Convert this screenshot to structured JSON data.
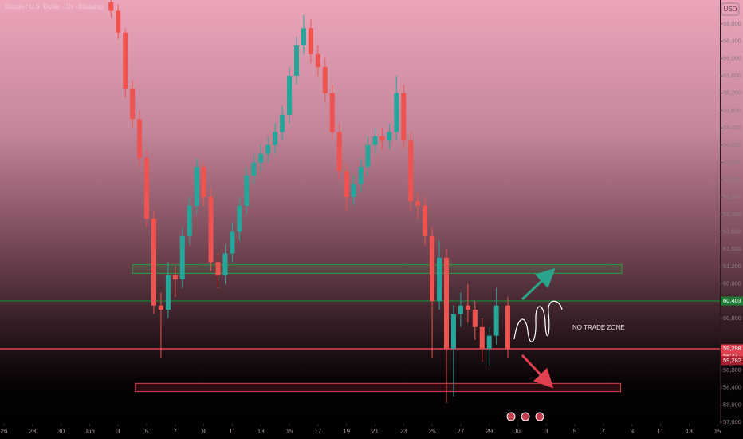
{
  "chart_data": {
    "type": "candlestick",
    "title": "Bitcoin / U.S. Dollar · 1h · Bitstamp",
    "currency": "USD",
    "up_color": "#26a69a",
    "down_color": "#ef5350",
    "x": [
      7.5,
      8,
      8.5,
      9,
      9.5,
      10,
      10.5,
      11,
      11.5,
      12,
      12.5,
      13,
      13.5,
      14,
      14.5,
      15,
      15.5,
      16,
      16.5,
      17,
      17.5,
      18,
      18.5,
      19,
      19.5,
      20,
      20.5,
      21,
      21.5,
      22,
      22.5,
      23,
      23.5,
      24,
      24.5,
      25,
      25.5,
      26,
      26.5,
      27,
      27.5,
      28,
      28.5,
      29,
      29.5,
      30,
      30.5,
      31,
      31.5,
      32,
      32.5,
      33,
      33.5,
      34,
      34.5,
      35.3
    ],
    "open": [
      67300,
      67100,
      66600,
      65300,
      64600,
      63700,
      62300,
      60300,
      60200,
      61000,
      60900,
      61900,
      62600,
      63500,
      62800,
      61300,
      61000,
      61500,
      62000,
      62600,
      63300,
      63600,
      63800,
      64000,
      64300,
      64700,
      65600,
      66300,
      66700,
      66100,
      65800,
      65200,
      64300,
      63400,
      62800,
      63100,
      63500,
      64000,
      64200,
      64100,
      64300,
      65200,
      64100,
      62700,
      62600,
      61900,
      60400,
      61400,
      59300,
      60100,
      60300,
      60200,
      59800,
      59300,
      59600,
      60300
    ],
    "high": [
      67350,
      67250,
      66700,
      65500,
      64800,
      63900,
      62500,
      60600,
      61300,
      61200,
      62100,
      62800,
      63700,
      63600,
      63000,
      61500,
      61700,
      62200,
      62800,
      63500,
      63800,
      64000,
      64200,
      64500,
      64900,
      65800,
      66500,
      67000,
      66900,
      66300,
      66000,
      65400,
      64500,
      63600,
      63300,
      63700,
      64200,
      64400,
      64400,
      64500,
      65600,
      65400,
      64300,
      62900,
      62800,
      62100,
      61800,
      61600,
      60300,
      60600,
      60800,
      60400,
      60000,
      59800,
      60700,
      60500
    ],
    "low": [
      66950,
      66450,
      65100,
      64400,
      63500,
      62100,
      60100,
      59100,
      60000,
      60500,
      60700,
      61700,
      62400,
      62600,
      61100,
      60700,
      60800,
      61300,
      61800,
      62400,
      63100,
      63400,
      63600,
      63800,
      64100,
      64500,
      65400,
      66100,
      65900,
      65600,
      65000,
      64100,
      63200,
      62500,
      62600,
      62900,
      63300,
      63800,
      63900,
      63900,
      64100,
      63900,
      62500,
      62300,
      61700,
      59100,
      60200,
      58050,
      58200,
      59800,
      59900,
      59500,
      59000,
      58900,
      59400,
      59100
    ],
    "close": [
      67100,
      66600,
      65300,
      64600,
      63700,
      62300,
      60300,
      60200,
      61000,
      60900,
      61900,
      62600,
      63500,
      62800,
      61300,
      61000,
      61500,
      62000,
      62600,
      63300,
      63600,
      63800,
      64000,
      64300,
      64700,
      65600,
      66300,
      66700,
      66100,
      65800,
      65200,
      64300,
      63400,
      62800,
      63100,
      63500,
      64000,
      64200,
      64100,
      64300,
      65200,
      64100,
      62700,
      62600,
      61900,
      60400,
      61400,
      59300,
      60100,
      60300,
      60200,
      59800,
      59300,
      59600,
      60300,
      59298
    ],
    "xlim": [
      -0.28,
      51.78
    ],
    "xticks": [
      {
        "value": 0,
        "label": "26"
      },
      {
        "value": 2,
        "label": "28"
      },
      {
        "value": 4,
        "label": "30"
      },
      {
        "value": 6,
        "label": "Jun"
      },
      {
        "value": 8,
        "label": "3"
      },
      {
        "value": 10,
        "label": "5"
      },
      {
        "value": 12,
        "label": "7"
      },
      {
        "value": 14,
        "label": "9"
      },
      {
        "value": 16,
        "label": "11"
      },
      {
        "value": 18,
        "label": "13"
      },
      {
        "value": 20,
        "label": "15"
      },
      {
        "value": 22,
        "label": "17"
      },
      {
        "value": 24,
        "label": "19"
      },
      {
        "value": 26,
        "label": "21"
      },
      {
        "value": 28,
        "label": "23"
      },
      {
        "value": 30,
        "label": "25"
      },
      {
        "value": 32,
        "label": "27"
      },
      {
        "value": 34,
        "label": "29"
      },
      {
        "value": 36,
        "label": "Jul"
      },
      {
        "value": 38,
        "label": "3"
      },
      {
        "value": 40,
        "label": "5"
      },
      {
        "value": 42,
        "label": "7"
      },
      {
        "value": 44,
        "label": "9"
      },
      {
        "value": 46,
        "label": "11"
      },
      {
        "value": 48,
        "label": "13"
      },
      {
        "value": 50,
        "label": "15"
      }
    ],
    "ylim": [
      57400,
      67350
    ],
    "yticks": [
      {
        "value": 66800,
        "label": "66,800"
      },
      {
        "value": 66400,
        "label": "66,400"
      },
      {
        "value": 66000,
        "label": "66,000"
      },
      {
        "value": 65600,
        "label": "65,600"
      },
      {
        "value": 65200,
        "label": "65,200"
      },
      {
        "value": 64800,
        "label": "64,800"
      },
      {
        "value": 64400,
        "label": "64,400"
      },
      {
        "value": 64000,
        "label": "64,000"
      },
      {
        "value": 63600,
        "label": "63,600"
      },
      {
        "value": 63200,
        "label": "63,200"
      },
      {
        "value": 62800,
        "label": "62,800"
      },
      {
        "value": 62400,
        "label": "62,400"
      },
      {
        "value": 62000,
        "label": "62,000"
      },
      {
        "value": 61600,
        "label": "61,600"
      },
      {
        "value": 61200,
        "label": "61,200"
      },
      {
        "value": 60800,
        "label": "60,800"
      },
      {
        "value": 60000,
        "label": "60,000"
      },
      {
        "value": 58800,
        "label": "58,800"
      },
      {
        "value": 58400,
        "label": "58,400"
      },
      {
        "value": 58000,
        "label": "58,000"
      },
      {
        "value": 57600,
        "label": "57,600"
      }
    ],
    "hlines": [
      {
        "value": 60403,
        "label": "60,403",
        "color": "#1d7a34"
      },
      {
        "value": 59298,
        "label": "59,298",
        "color": "#e0404f"
      }
    ],
    "countdown": "58:27",
    "price_labels": [
      {
        "value": 59282,
        "label": "59,282",
        "color": "#a81e2e"
      }
    ],
    "zones": [
      {
        "x": [
          9.0,
          43.3
        ],
        "y": [
          61040,
          61240
        ],
        "color": "#2e9a40"
      },
      {
        "x": [
          9.2,
          43.2
        ],
        "y": [
          58310,
          58500
        ],
        "color": "#d94050"
      }
    ],
    "annotations": [
      {
        "text": "NO TRADE ZONE"
      }
    ]
  }
}
